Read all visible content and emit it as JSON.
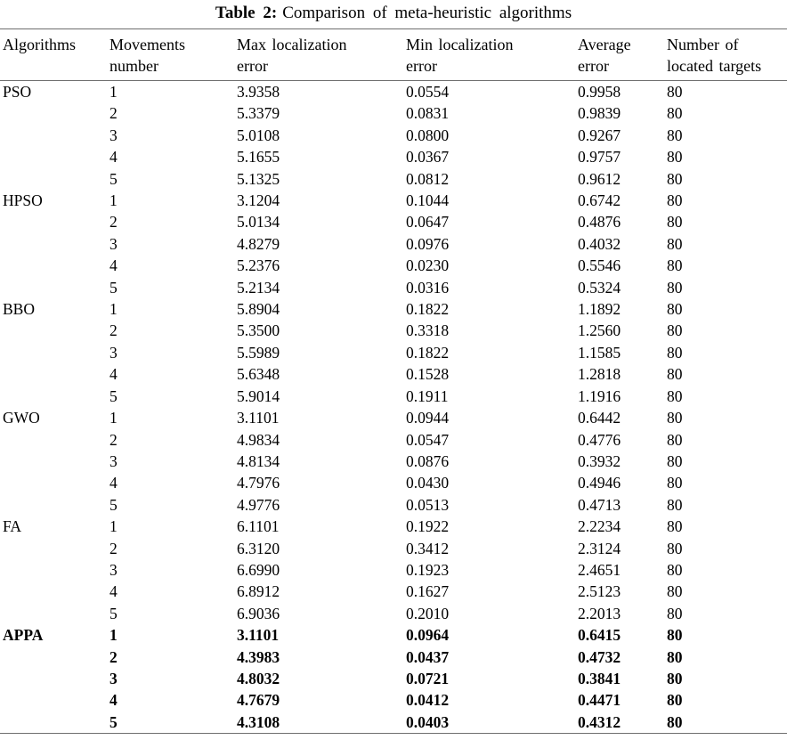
{
  "title": {
    "label": "Table 2:",
    "text": "Comparison of meta-heuristic algorithms"
  },
  "table": {
    "columns": [
      {
        "line1": "Algorithms",
        "line2": ""
      },
      {
        "line1": "Movements",
        "line2": "number"
      },
      {
        "line1": "Max localization",
        "line2": "error"
      },
      {
        "line1": "Min localization",
        "line2": "error"
      },
      {
        "line1": "Average",
        "line2": "error"
      },
      {
        "line1": "Number of",
        "line2": "located targets"
      }
    ],
    "groups": [
      {
        "algorithm": "PSO",
        "bold": false,
        "rows": [
          [
            "1",
            "3.9358",
            "0.0554",
            "0.9958",
            "80"
          ],
          [
            "2",
            "5.3379",
            "0.0831",
            "0.9839",
            "80"
          ],
          [
            "3",
            "5.0108",
            "0.0800",
            "0.9267",
            "80"
          ],
          [
            "4",
            "5.1655",
            "0.0367",
            "0.9757",
            "80"
          ],
          [
            "5",
            "5.1325",
            "0.0812",
            "0.9612",
            "80"
          ]
        ]
      },
      {
        "algorithm": "HPSO",
        "bold": false,
        "rows": [
          [
            "1",
            "3.1204",
            "0.1044",
            "0.6742",
            "80"
          ],
          [
            "2",
            "5.0134",
            "0.0647",
            "0.4876",
            "80"
          ],
          [
            "3",
            "4.8279",
            "0.0976",
            "0.4032",
            "80"
          ],
          [
            "4",
            "5.2376",
            "0.0230",
            "0.5546",
            "80"
          ],
          [
            "5",
            "5.2134",
            "0.0316",
            "0.5324",
            "80"
          ]
        ]
      },
      {
        "algorithm": "BBO",
        "bold": false,
        "rows": [
          [
            "1",
            "5.8904",
            "0.1822",
            "1.1892",
            "80"
          ],
          [
            "2",
            "5.3500",
            "0.3318",
            "1.2560",
            "80"
          ],
          [
            "3",
            "5.5989",
            "0.1822",
            "1.1585",
            "80"
          ],
          [
            "4",
            "5.6348",
            "0.1528",
            "1.2818",
            "80"
          ],
          [
            "5",
            "5.9014",
            "0.1911",
            "1.1916",
            "80"
          ]
        ]
      },
      {
        "algorithm": "GWO",
        "bold": false,
        "rows": [
          [
            "1",
            "3.1101",
            "0.0944",
            "0.6442",
            "80"
          ],
          [
            "2",
            "4.9834",
            "0.0547",
            "0.4776",
            "80"
          ],
          [
            "3",
            "4.8134",
            "0.0876",
            "0.3932",
            "80"
          ],
          [
            "4",
            "4.7976",
            "0.0430",
            "0.4946",
            "80"
          ],
          [
            "5",
            "4.9776",
            "0.0513",
            "0.4713",
            "80"
          ]
        ]
      },
      {
        "algorithm": "FA",
        "bold": false,
        "rows": [
          [
            "1",
            "6.1101",
            "0.1922",
            "2.2234",
            "80"
          ],
          [
            "2",
            "6.3120",
            "0.3412",
            "2.3124",
            "80"
          ],
          [
            "3",
            "6.6990",
            "0.1923",
            "2.4651",
            "80"
          ],
          [
            "4",
            "6.8912",
            "0.1627",
            "2.5123",
            "80"
          ],
          [
            "5",
            "6.9036",
            "0.2010",
            "2.2013",
            "80"
          ]
        ]
      },
      {
        "algorithm": "APPA",
        "bold": true,
        "rows": [
          [
            "1",
            "3.1101",
            "0.0964",
            "0.6415",
            "80"
          ],
          [
            "2",
            "4.3983",
            "0.0437",
            "0.4732",
            "80"
          ],
          [
            "3",
            "4.8032",
            "0.0721",
            "0.3841",
            "80"
          ],
          [
            "4",
            "4.7679",
            "0.0412",
            "0.4471",
            "80"
          ],
          [
            "5",
            "4.3108",
            "0.0403",
            "0.4312",
            "80"
          ]
        ]
      }
    ]
  }
}
